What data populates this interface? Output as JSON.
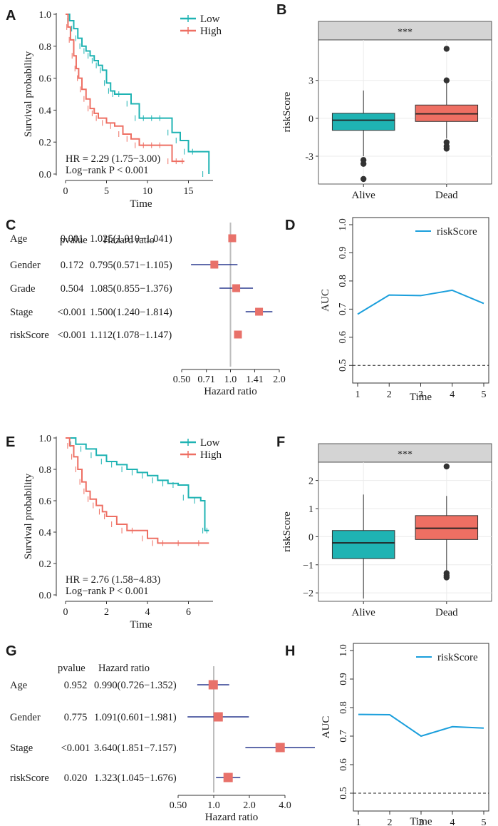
{
  "colors": {
    "low": "#1fb3b3",
    "high": "#ee6f63",
    "auc": "#1b9fdc",
    "forest": "#e8716a",
    "ci": "#2b3a8f",
    "strip": "#d4d4d4"
  },
  "chart_data": [
    {
      "panel": "A",
      "type": "line",
      "subtype": "kaplan-meier",
      "xlabel": "Time",
      "ylabel": "Survival probability",
      "xlim": [
        0,
        18
      ],
      "ylim": [
        0,
        1
      ],
      "xticks": [
        "0",
        "5",
        "10",
        "15"
      ],
      "yticks": [
        "0.0",
        "0.2",
        "0.4",
        "0.6",
        "0.8",
        "1.0"
      ],
      "legend": [
        "Low",
        "High"
      ],
      "annotation": [
        "HR = 2.29 (1.75−3.00)",
        "Log−rank P < 0.001"
      ],
      "series": [
        {
          "name": "Low",
          "x": [
            0,
            0.5,
            1,
            1.5,
            2,
            2.5,
            3,
            3.5,
            4,
            4.5,
            5,
            5.5,
            6,
            7,
            8,
            9,
            10,
            11,
            12,
            13,
            14,
            15,
            16,
            17.5
          ],
          "y": [
            1,
            0.96,
            0.91,
            0.85,
            0.8,
            0.77,
            0.74,
            0.71,
            0.68,
            0.65,
            0.57,
            0.52,
            0.5,
            0.5,
            0.44,
            0.35,
            0.35,
            0.35,
            0.35,
            0.26,
            0.21,
            0.14,
            0.14,
            0
          ]
        },
        {
          "name": "High",
          "x": [
            0,
            0.3,
            0.6,
            1,
            1.3,
            1.6,
            2,
            2.5,
            3,
            3.5,
            4,
            5,
            6,
            7,
            8,
            9,
            10,
            11,
            12,
            13,
            14,
            14.5
          ],
          "y": [
            1,
            0.92,
            0.84,
            0.74,
            0.66,
            0.6,
            0.53,
            0.47,
            0.41,
            0.38,
            0.35,
            0.32,
            0.3,
            0.25,
            0.22,
            0.18,
            0.18,
            0.18,
            0.18,
            0.08,
            0.08,
            0.08
          ]
        }
      ]
    },
    {
      "panel": "B",
      "type": "box",
      "strip_label": "***",
      "ylabel": "riskScore",
      "categories": [
        "Alive",
        "Dead"
      ],
      "ylim": [
        -5.2,
        6.2
      ],
      "yticks": [
        "-3",
        "0",
        "3"
      ],
      "boxes": [
        {
          "name": "Alive",
          "q1": -0.95,
          "median": -0.15,
          "q3": 0.4,
          "whisker_low": -3.0,
          "whisker_high": 2.2,
          "outliers": [
            -3.3,
            -3.6,
            -4.8
          ]
        },
        {
          "name": "Dead",
          "q1": -0.25,
          "median": 0.35,
          "q3": 1.05,
          "whisker_low": -1.6,
          "whisker_high": 2.8,
          "outliers": [
            -1.9,
            -2.2,
            -2.4,
            3.0,
            5.5
          ]
        }
      ]
    },
    {
      "panel": "C",
      "type": "forest",
      "col_headers": [
        "pvalue",
        "Hazard ratio"
      ],
      "xlabel": "Hazard   ratio",
      "xticks": [
        "0.50",
        "0.71",
        "1.0",
        "1.41",
        "2.0"
      ],
      "rows": [
        {
          "label": "Age",
          "pvalue": "0.001",
          "hr_text": "1.025(1.010−1.041)",
          "hr": 1.025,
          "lo": 1.01,
          "hi": 1.041
        },
        {
          "label": "Gender",
          "pvalue": "0.172",
          "hr_text": "0.795(0.571−1.105)",
          "hr": 0.795,
          "lo": 0.571,
          "hi": 1.105
        },
        {
          "label": "Grade",
          "pvalue": "0.504",
          "hr_text": "1.085(0.855−1.376)",
          "hr": 1.085,
          "lo": 0.855,
          "hi": 1.376
        },
        {
          "label": "Stage",
          "pvalue": "<0.001",
          "hr_text": "1.500(1.240−1.814)",
          "hr": 1.5,
          "lo": 1.24,
          "hi": 1.814
        },
        {
          "label": "riskScore",
          "pvalue": "<0.001",
          "hr_text": "1.112(1.078−1.147)",
          "hr": 1.112,
          "lo": 1.078,
          "hi": 1.147
        }
      ]
    },
    {
      "panel": "D",
      "type": "line",
      "xlabel": "Time",
      "ylabel": "AUC",
      "xlim": [
        1,
        5
      ],
      "ylim": [
        0.45,
        1.0
      ],
      "xticks": [
        "1",
        "2",
        "3",
        "4",
        "5"
      ],
      "yticks": [
        "0.5",
        "0.6",
        "0.7",
        "0.8",
        "0.9",
        "1.0"
      ],
      "legend": [
        "riskScore"
      ],
      "reference_line": 0.5,
      "series": [
        {
          "name": "riskScore",
          "x": [
            1,
            2,
            3,
            4,
            5
          ],
          "y": [
            0.682,
            0.75,
            0.748,
            0.767,
            0.72
          ]
        }
      ]
    },
    {
      "panel": "E",
      "type": "line",
      "subtype": "kaplan-meier",
      "xlabel": "Time",
      "ylabel": "Survival probability",
      "xlim": [
        0,
        7.2
      ],
      "ylim": [
        0,
        1
      ],
      "xticks": [
        "0",
        "2",
        "4",
        "6"
      ],
      "yticks": [
        "0.0",
        "0.2",
        "0.4",
        "0.6",
        "0.8",
        "1.0"
      ],
      "legend": [
        "Low",
        "High"
      ],
      "annotation": [
        "HR = 2.76 (1.58−4.83)",
        "Log−rank P < 0.001"
      ],
      "series": [
        {
          "name": "Low",
          "x": [
            0,
            0.5,
            1,
            1.5,
            2,
            2.5,
            3,
            3.5,
            4,
            4.5,
            5,
            5.5,
            6,
            6.6,
            6.8,
            7
          ],
          "y": [
            1,
            0.96,
            0.93,
            0.89,
            0.85,
            0.83,
            0.8,
            0.78,
            0.76,
            0.73,
            0.71,
            0.7,
            0.62,
            0.6,
            0.41,
            0.41
          ]
        },
        {
          "name": "High",
          "x": [
            0,
            0.2,
            0.4,
            0.6,
            0.8,
            1,
            1.2,
            1.5,
            1.8,
            2,
            2.5,
            3,
            3.5,
            4,
            4.5,
            5,
            6,
            7
          ],
          "y": [
            1,
            0.95,
            0.88,
            0.8,
            0.72,
            0.66,
            0.61,
            0.57,
            0.53,
            0.5,
            0.45,
            0.41,
            0.41,
            0.36,
            0.33,
            0.33,
            0.33,
            0.33
          ]
        }
      ]
    },
    {
      "panel": "F",
      "type": "box",
      "strip_label": "***",
      "ylabel": "riskScore",
      "categories": [
        "Alive",
        "Dead"
      ],
      "ylim": [
        -2.3,
        2.65
      ],
      "yticks": [
        "−2",
        "−1",
        "0",
        "1",
        "2"
      ],
      "boxes": [
        {
          "name": "Alive",
          "q1": -0.78,
          "median": -0.22,
          "q3": 0.22,
          "whisker_low": -2.2,
          "whisker_high": 1.5,
          "outliers": []
        },
        {
          "name": "Dead",
          "q1": -0.1,
          "median": 0.3,
          "q3": 0.75,
          "whisker_low": -1.2,
          "whisker_high": 1.45,
          "outliers": [
            -1.3,
            -1.38,
            -1.45,
            2.5
          ]
        }
      ]
    },
    {
      "panel": "G",
      "type": "forest",
      "col_headers": [
        "pvalue",
        "Hazard  ratio"
      ],
      "xlabel": "Hazard   ratio",
      "xticks": [
        "0.50",
        "1.0",
        "2.0",
        "4.0"
      ],
      "rows": [
        {
          "label": "Age",
          "pvalue": "0.952",
          "hr_text": "0.990(0.726−1.352)",
          "hr": 0.99,
          "lo": 0.726,
          "hi": 1.352
        },
        {
          "label": "Gender",
          "pvalue": "0.775",
          "hr_text": "1.091(0.601−1.981)",
          "hr": 1.091,
          "lo": 0.601,
          "hi": 1.981
        },
        {
          "label": "Stage",
          "pvalue": "<0.001",
          "hr_text": "3.640(1.851−7.157)",
          "hr": 3.64,
          "lo": 1.851,
          "hi": 7.157
        },
        {
          "label": "riskScore",
          "pvalue": "0.020",
          "hr_text": "1.323(1.045−1.676)",
          "hr": 1.323,
          "lo": 1.045,
          "hi": 1.676
        }
      ]
    },
    {
      "panel": "H",
      "type": "line",
      "xlabel": "Time",
      "ylabel": "AUC",
      "xlim": [
        1,
        5
      ],
      "ylim": [
        0.45,
        1.0
      ],
      "xticks": [
        "1",
        "2",
        "3",
        "4",
        "5"
      ],
      "yticks": [
        "0.5",
        "0.6",
        "0.7",
        "0.8",
        "0.9",
        "1.0"
      ],
      "legend": [
        "riskScore"
      ],
      "reference_line": 0.5,
      "series": [
        {
          "name": "riskScore",
          "x": [
            1,
            2,
            3,
            4,
            5
          ],
          "y": [
            0.776,
            0.775,
            0.7,
            0.733,
            0.728
          ]
        }
      ]
    }
  ]
}
